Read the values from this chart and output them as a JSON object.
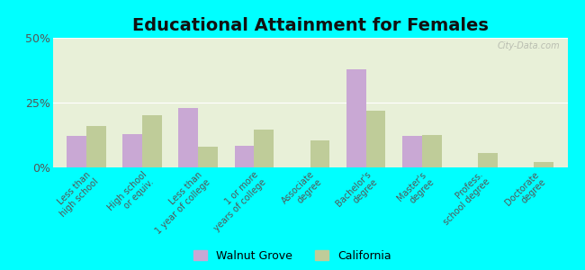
{
  "title": "Educational Attainment for Females",
  "categories": [
    "Less than\nhigh school",
    "High school\nor equiv.",
    "Less than\n1 year of college",
    "1 or more\nyears of college",
    "Associate\ndegree",
    "Bachelor's\ndegree",
    "Master's\ndegree",
    "Profess.\nschool degree",
    "Doctorate\ndegree"
  ],
  "walnut_grove": [
    12.0,
    13.0,
    23.0,
    8.5,
    0.0,
    38.0,
    12.0,
    0.0,
    0.0
  ],
  "california": [
    16.0,
    20.0,
    8.0,
    14.5,
    10.5,
    22.0,
    12.5,
    5.5,
    2.0
  ],
  "walnut_color": "#c9a8d4",
  "california_color": "#bfcc99",
  "background_color": "#e8f0d8",
  "outer_background": "#00ffff",
  "ylim": [
    0,
    50
  ],
  "yticks": [
    0,
    25,
    50
  ],
  "ytick_labels": [
    "0%",
    "25%",
    "50%"
  ],
  "legend_walnut": "Walnut Grove",
  "legend_california": "California",
  "title_fontsize": 14,
  "watermark": "City-Data.com"
}
